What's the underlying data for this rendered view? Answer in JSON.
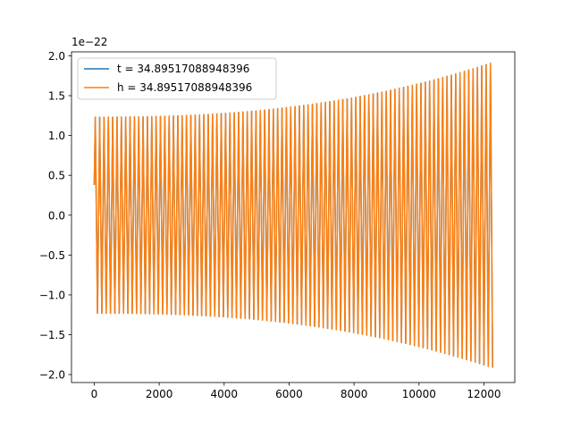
{
  "chart_data": {
    "type": "line",
    "title": "",
    "xlabel": "",
    "ylabel": "",
    "y_offset_label": "1e−22",
    "xlim": [
      -700,
      12950
    ],
    "ylim": [
      -2.1,
      2.05
    ],
    "xticks": [
      0,
      2000,
      4000,
      6000,
      8000,
      10000,
      12000
    ],
    "xtick_labels": [
      "0",
      "2000",
      "4000",
      "6000",
      "8000",
      "10000",
      "12000"
    ],
    "yticks": [
      -2.0,
      -1.5,
      -1.0,
      -0.5,
      0.0,
      0.5,
      1.0,
      1.5,
      2.0
    ],
    "ytick_labels": [
      "−2.0",
      "−1.5",
      "−1.0",
      "−0.5",
      "0.0",
      "0.5",
      "1.0",
      "1.5",
      "2.0"
    ],
    "grid": false,
    "legend_position": "upper-left",
    "signal": {
      "x_start": 0,
      "x_end": 12300,
      "initial_value": 0.38,
      "amplitude_start": 1.23,
      "amplitude_end": 1.92,
      "cycles": 92
    },
    "series": [
      {
        "name": "t = 34.89517088948396",
        "color": "#1f77b4"
      },
      {
        "name": "h = 34.89517088948396",
        "color": "#ff7f0e"
      }
    ]
  }
}
